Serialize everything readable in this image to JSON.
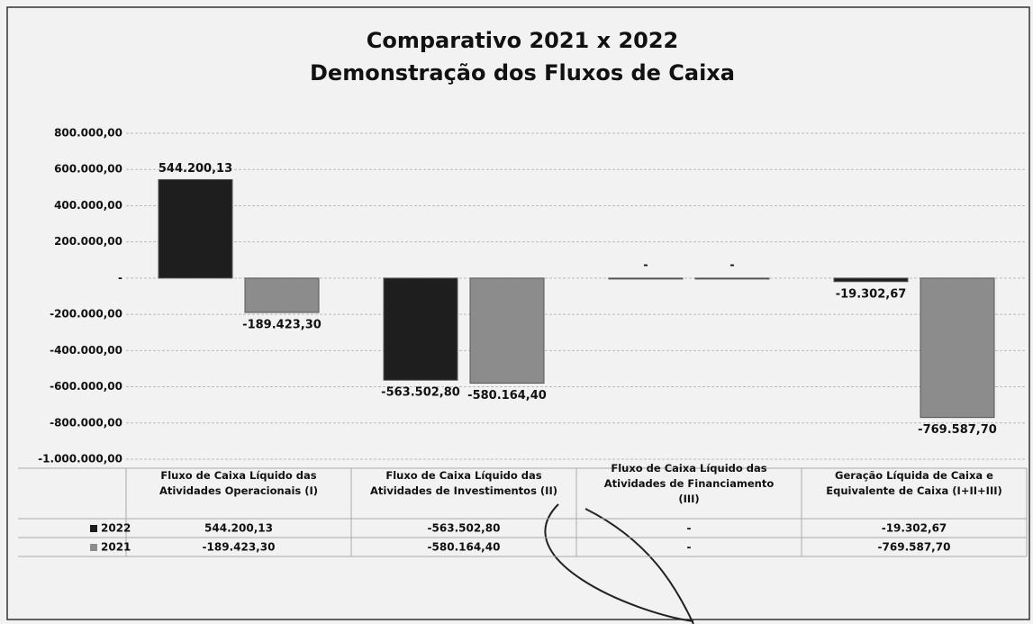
{
  "chart_data": {
    "type": "bar",
    "title": "Comparativo 2021 x 2022",
    "subtitle": "Demonstração dos Fluxos de Caixa",
    "categories": [
      "Fluxo de Caixa Líquido das Atividades Operacionais (I)",
      "Fluxo de Caixa Líquido das Atividades de Investimentos (II)",
      "Fluxo de Caixa Líquido das Atividades de Financiamento (III)",
      "Geração Líquida de Caixa e Equivalente de Caixa (I+II+III)"
    ],
    "series": [
      {
        "name": "2022",
        "color": "#1e1e1e",
        "values": [
          544200.13,
          -563502.8,
          0,
          -19302.67
        ],
        "value_labels": [
          "544.200,13",
          "-563.502,80",
          "-",
          "-19.302,67"
        ]
      },
      {
        "name": "2021",
        "color": "#8c8c8c",
        "values": [
          -189423.3,
          -580164.4,
          0,
          -769587.7
        ],
        "value_labels": [
          "-189.423,30",
          "-580.164,40",
          "-",
          "-769.587,70"
        ]
      }
    ],
    "ylim": [
      -1000000,
      800000
    ],
    "yticks": [
      {
        "value": 800000,
        "label": "800.000,00"
      },
      {
        "value": 600000,
        "label": "600.000,00"
      },
      {
        "value": 400000,
        "label": "400.000,00"
      },
      {
        "value": 200000,
        "label": "200.000,00"
      },
      {
        "value": 0,
        "label": "-"
      },
      {
        "value": -200000,
        "label": "-200.000,00"
      },
      {
        "value": -400000,
        "label": "-400.000,00"
      },
      {
        "value": -600000,
        "label": "-600.000,00"
      },
      {
        "value": -800000,
        "label": "-800.000,00"
      },
      {
        "value": -1000000,
        "label": "-1.000.000,00"
      }
    ],
    "grid": true
  }
}
